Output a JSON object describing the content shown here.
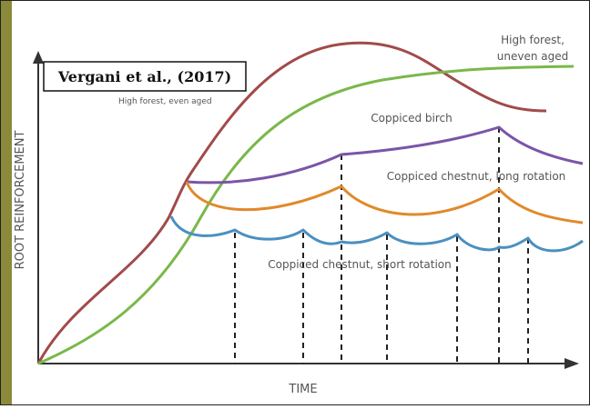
{
  "citation": "Vergani et al., (2017)",
  "axes": {
    "y_label": "ROOT REINFORCEMENT",
    "x_label": "TIME"
  },
  "curves": [
    {
      "label": "High forest, even aged"
    },
    {
      "label": [
        "High forest,",
        "uneven aged"
      ]
    },
    {
      "label": "Coppiced birch"
    },
    {
      "label": "Coppiced chestnut, long rotation"
    },
    {
      "label": "Coppiced chestnut, short rotation"
    }
  ]
}
